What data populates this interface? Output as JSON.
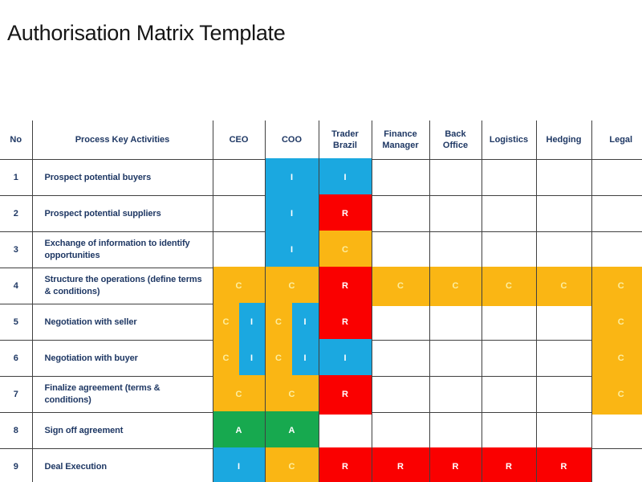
{
  "title": "Authorisation Matrix Template",
  "colors": {
    "blue": "#1BA8E0",
    "red": "#FA0000",
    "yellow": "#FAB614",
    "green": "#17A94F",
    "header_text": "#1F3864",
    "grid_border": "#404040",
    "mark_text": "#FFFFFF",
    "mark_text_on_yellow": "#FDEEA0"
  },
  "table": {
    "columns": [
      {
        "key": "no",
        "label": "No"
      },
      {
        "key": "activities",
        "label": "Process Key Activities"
      },
      {
        "key": "ceo",
        "label": "CEO"
      },
      {
        "key": "coo",
        "label": "COO"
      },
      {
        "key": "trader_brazil",
        "label": "Trader Brazil"
      },
      {
        "key": "finance_manager",
        "label": "Finance Manager"
      },
      {
        "key": "back_office",
        "label": "Back Office"
      },
      {
        "key": "logistics",
        "label": "Logistics"
      },
      {
        "key": "hedging",
        "label": "Hedging"
      },
      {
        "key": "legal",
        "label": "Legal"
      }
    ],
    "role_keys": [
      "ceo",
      "coo",
      "trader_brazil",
      "finance_manager",
      "back_office",
      "logistics",
      "hedging",
      "legal"
    ],
    "rows": [
      {
        "no": "1",
        "activity": "Prospect potential buyers",
        "cells": {
          "coo": [
            {
              "letter": "I",
              "color": "blue"
            }
          ],
          "trader_brazil": [
            {
              "letter": "I",
              "color": "blue"
            }
          ]
        }
      },
      {
        "no": "2",
        "activity": "Prospect potential suppliers",
        "cells": {
          "coo": [
            {
              "letter": "I",
              "color": "blue"
            }
          ],
          "trader_brazil": [
            {
              "letter": "R",
              "color": "red"
            }
          ]
        }
      },
      {
        "no": "3",
        "activity": "Exchange of information to identify opportunities",
        "cells": {
          "coo": [
            {
              "letter": "I",
              "color": "blue"
            }
          ],
          "trader_brazil": [
            {
              "letter": "C",
              "color": "yellow"
            }
          ]
        }
      },
      {
        "no": "4",
        "activity": "Structure the operations  (define terms & conditions)",
        "cells": {
          "ceo": [
            {
              "letter": "C",
              "color": "yellow"
            }
          ],
          "coo": [
            {
              "letter": "C",
              "color": "yellow"
            }
          ],
          "trader_brazil": [
            {
              "letter": "R",
              "color": "red"
            }
          ],
          "finance_manager": [
            {
              "letter": "C",
              "color": "yellow"
            }
          ],
          "back_office": [
            {
              "letter": "C",
              "color": "yellow"
            }
          ],
          "logistics": [
            {
              "letter": "C",
              "color": "yellow"
            }
          ],
          "hedging": [
            {
              "letter": "C",
              "color": "yellow"
            }
          ],
          "legal": [
            {
              "letter": "C",
              "color": "yellow"
            }
          ]
        }
      },
      {
        "no": "5",
        "activity": "Negotiation with seller",
        "cells": {
          "ceo": [
            {
              "letter": "C",
              "color": "yellow"
            },
            {
              "letter": "I",
              "color": "blue"
            }
          ],
          "coo": [
            {
              "letter": "C",
              "color": "yellow"
            },
            {
              "letter": "I",
              "color": "blue"
            }
          ],
          "trader_brazil": [
            {
              "letter": "R",
              "color": "red"
            }
          ],
          "legal": [
            {
              "letter": "C",
              "color": "yellow"
            }
          ]
        }
      },
      {
        "no": "6",
        "activity": "Negotiation with buyer",
        "cells": {
          "ceo": [
            {
              "letter": "C",
              "color": "yellow"
            },
            {
              "letter": "I",
              "color": "blue"
            }
          ],
          "coo": [
            {
              "letter": "C",
              "color": "yellow"
            },
            {
              "letter": "I",
              "color": "blue"
            }
          ],
          "trader_brazil": [
            {
              "letter": "I",
              "color": "blue"
            }
          ],
          "legal": [
            {
              "letter": "C",
              "color": "yellow"
            }
          ]
        }
      },
      {
        "no": "7",
        "activity": "Finalize agreement (terms & conditions)",
        "cells": {
          "ceo": [
            {
              "letter": "C",
              "color": "yellow"
            }
          ],
          "coo": [
            {
              "letter": "C",
              "color": "yellow"
            }
          ],
          "trader_brazil": [
            {
              "letter": "R",
              "color": "red"
            }
          ],
          "legal": [
            {
              "letter": "C",
              "color": "yellow"
            }
          ]
        }
      },
      {
        "no": "8",
        "activity": "Sign off agreement",
        "cells": {
          "ceo": [
            {
              "letter": "A",
              "color": "green"
            }
          ],
          "coo": [
            {
              "letter": "A",
              "color": "green"
            }
          ]
        }
      },
      {
        "no": "9",
        "activity": "Deal Execution",
        "cells": {
          "ceo": [
            {
              "letter": "I",
              "color": "blue"
            }
          ],
          "coo": [
            {
              "letter": "C",
              "color": "yellow"
            }
          ],
          "trader_brazil": [
            {
              "letter": "R",
              "color": "red"
            }
          ],
          "finance_manager": [
            {
              "letter": "R",
              "color": "red"
            }
          ],
          "back_office": [
            {
              "letter": "R",
              "color": "red"
            }
          ],
          "logistics": [
            {
              "letter": "R",
              "color": "red"
            }
          ],
          "hedging": [
            {
              "letter": "R",
              "color": "red"
            }
          ]
        }
      }
    ]
  }
}
